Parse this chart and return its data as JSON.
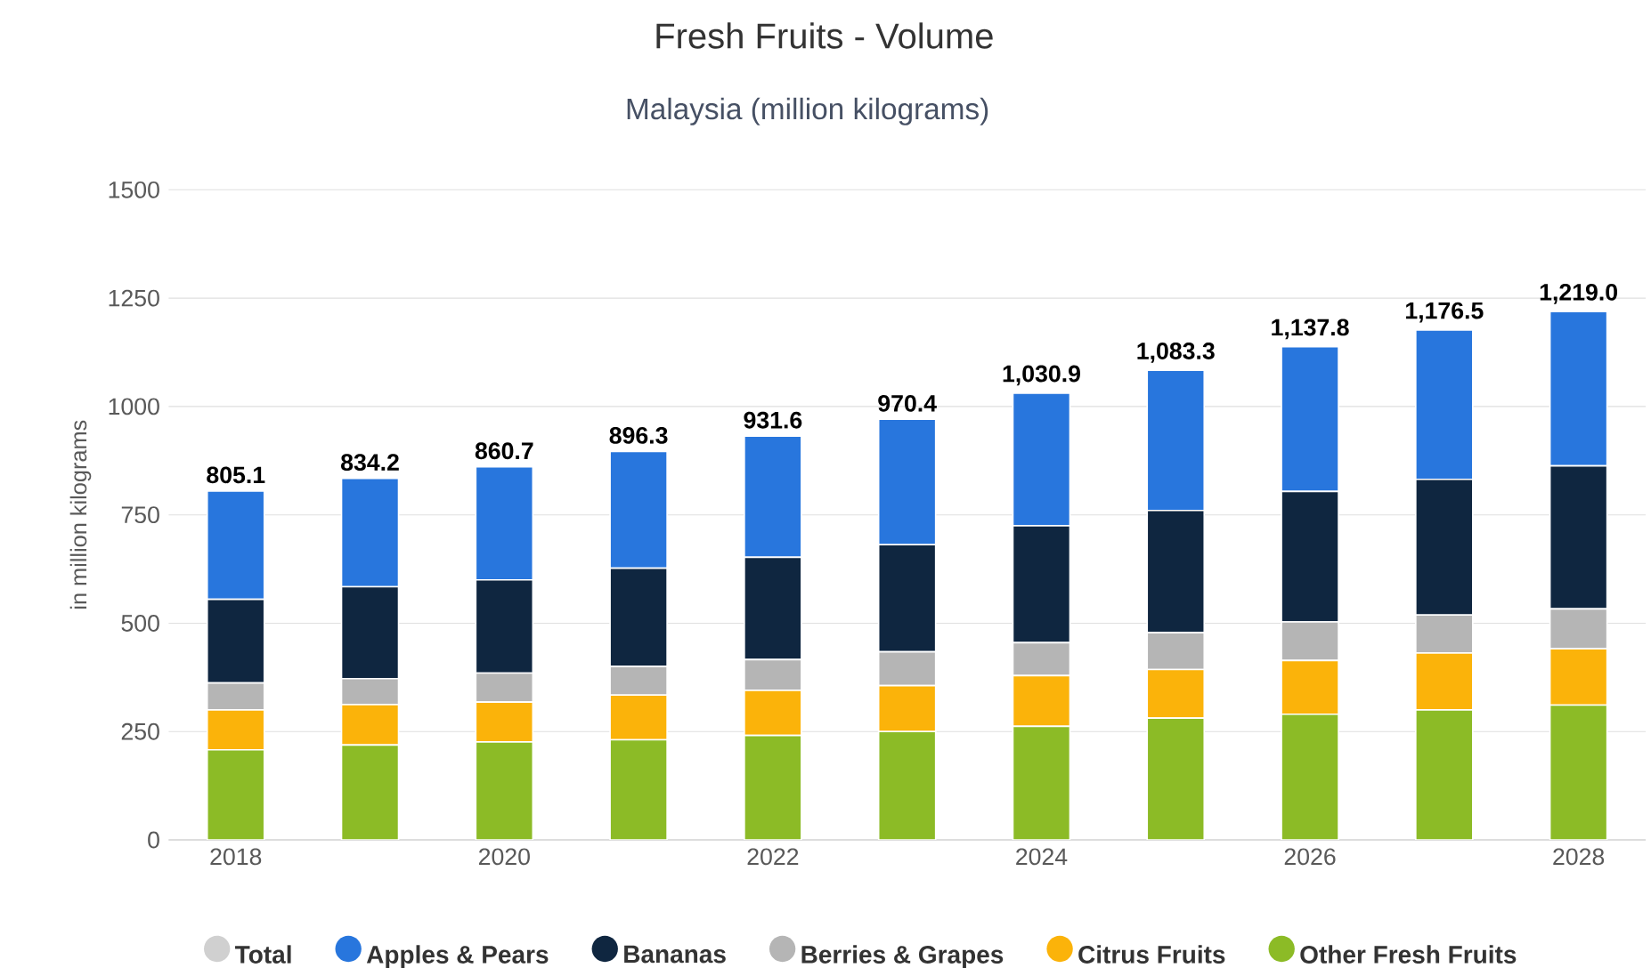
{
  "chart_data": {
    "type": "bar",
    "stacked": true,
    "title": "Fresh Fruits - Volume",
    "subtitle": "Malaysia (million kilograms)",
    "ylabel": "in million kilograms",
    "categories": [
      "2018",
      null,
      "2020",
      null,
      "2022",
      null,
      "2024",
      null,
      "2026",
      null,
      "2028"
    ],
    "series": [
      {
        "name": "Other Fresh Fruits",
        "color": "#8cbb26",
        "values": [
          208,
          219,
          226,
          231,
          241,
          250,
          262,
          281,
          290,
          300,
          311
        ]
      },
      {
        "name": "Citrus Fruits",
        "color": "#fbb30a",
        "values": [
          92,
          93,
          92,
          103,
          104,
          106,
          117,
          112,
          124,
          131,
          130
        ]
      },
      {
        "name": "Berries & Grapes",
        "color": "#b5b5b5",
        "values": [
          62,
          60,
          67,
          66,
          71,
          78,
          76,
          85,
          89,
          88,
          92
        ]
      },
      {
        "name": "Bananas",
        "color": "#0f2640",
        "values": [
          193,
          212,
          215,
          227,
          236,
          247,
          270,
          282,
          301,
          313,
          330
        ]
      },
      {
        "name": "Apples & Pears",
        "color": "#2876dd",
        "values": [
          250.1,
          250.2,
          260.7,
          269.3,
          279.6,
          289.4,
          305.9,
          323.3,
          333.8,
          344.5,
          356
        ]
      },
      {
        "name": "Total",
        "color": "#d0d0d0",
        "values": [
          null,
          null,
          null,
          null,
          null,
          null,
          null,
          null,
          null,
          null,
          null
        ]
      }
    ],
    "totals": [
      "805.1",
      "834.2",
      "860.7",
      "896.3",
      "931.6",
      "970.4",
      "1,030.9",
      "1,083.3",
      "1,137.8",
      "1,176.5",
      "1,219.0"
    ],
    "ylim": [
      0,
      1500
    ],
    "yticks": [
      0,
      250,
      500,
      750,
      1000,
      1250,
      1500
    ],
    "grid": "y",
    "legend": "bottom"
  }
}
